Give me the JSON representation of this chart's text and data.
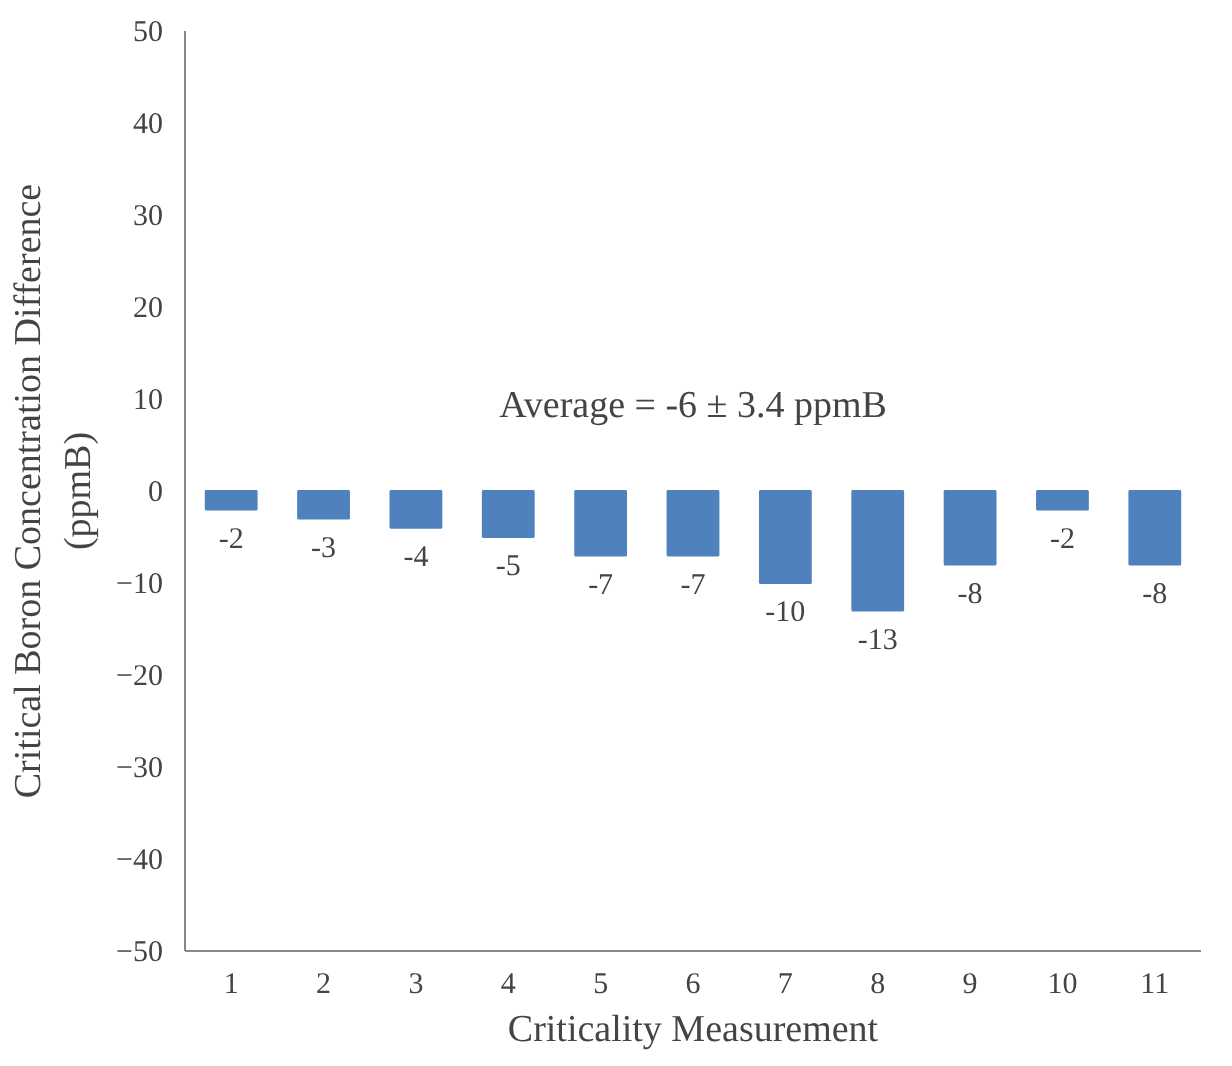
{
  "chart_data": {
    "type": "bar",
    "xlabel": "Criticality Measurement",
    "ylabel": "Critical Boron Concentration Difference\n(ppmB)",
    "categories": [
      "1",
      "2",
      "3",
      "4",
      "5",
      "6",
      "7",
      "8",
      "9",
      "10",
      "11"
    ],
    "values": [
      -2,
      -3,
      -4,
      -5,
      -7,
      -7,
      -10,
      -13,
      -8,
      -2,
      -8
    ],
    "color": "#4f81bd",
    "data_labels": true,
    "ylim": [
      -50,
      50
    ],
    "yticks": [
      -50,
      -40,
      -30,
      -20,
      -10,
      0,
      10,
      20,
      30,
      40,
      50
    ],
    "annotations": [
      "Average = -6 ± 3.4 ppmB"
    ]
  }
}
